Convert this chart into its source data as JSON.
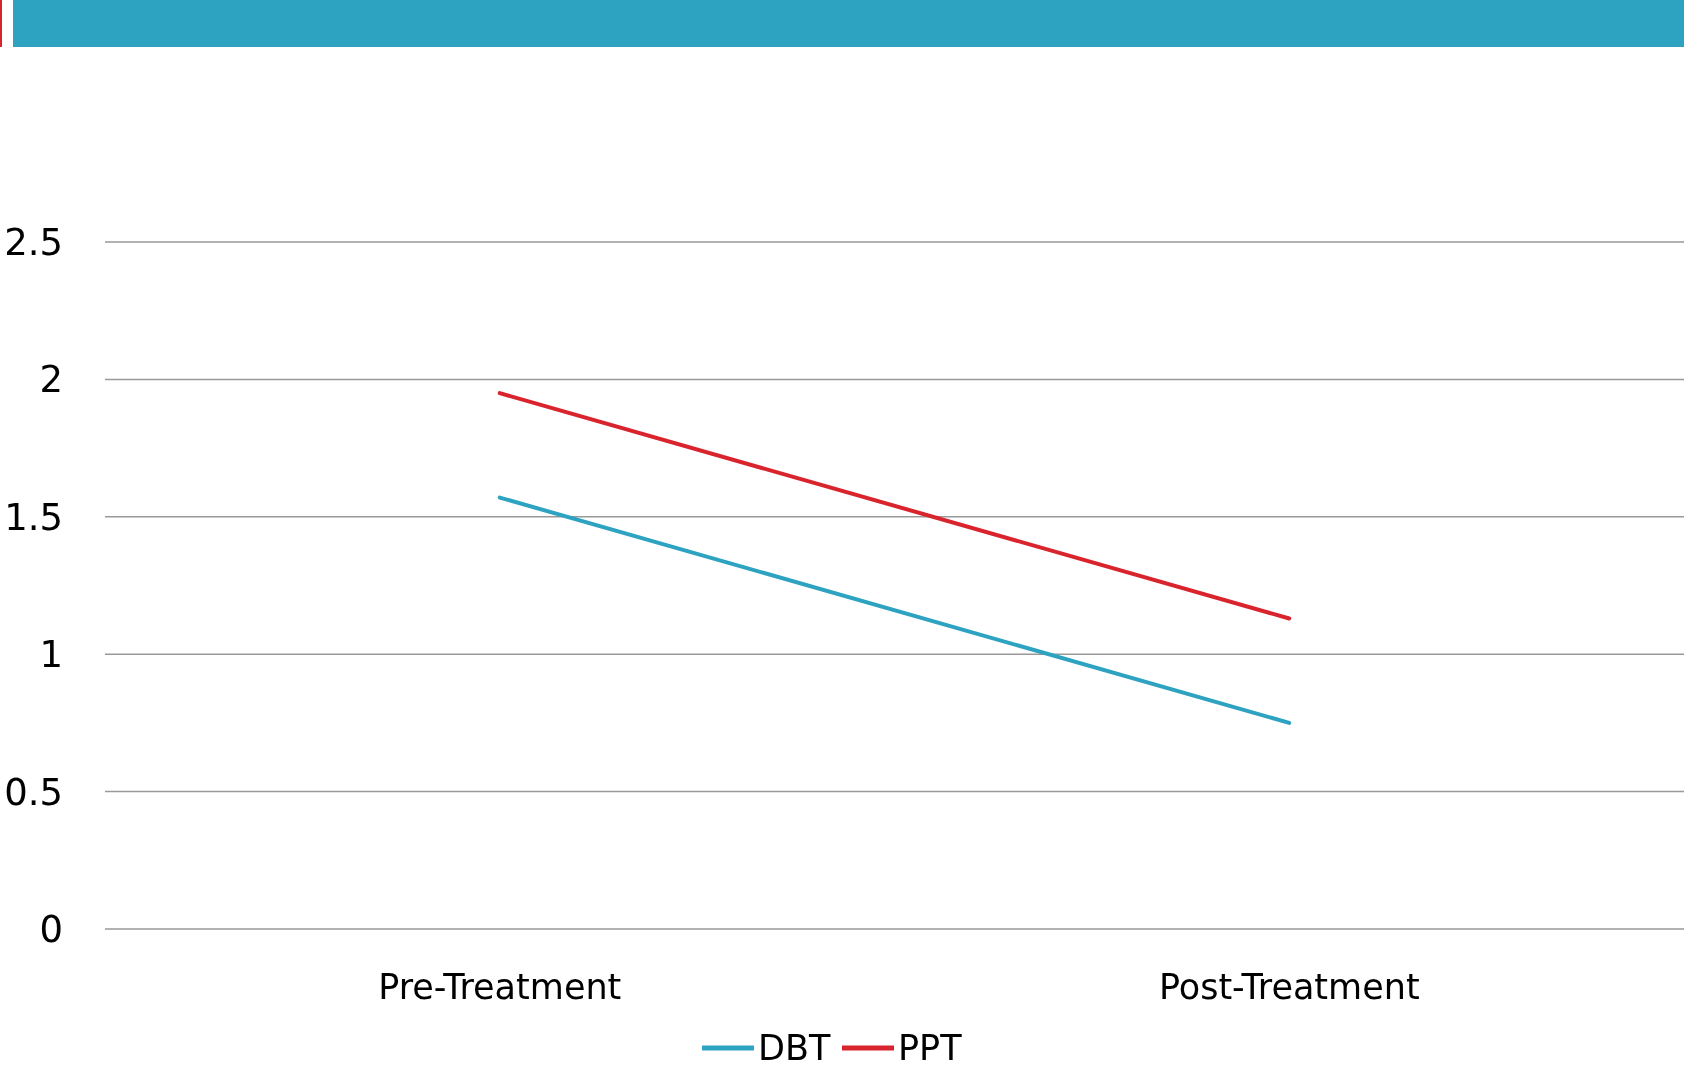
{
  "chart_data": {
    "type": "line",
    "categories": [
      "Pre-Treatment",
      "Post-Treatment"
    ],
    "series": [
      {
        "name": "DBT",
        "color": "#2ea3c1",
        "values": [
          1.57,
          0.75
        ]
      },
      {
        "name": "PPT",
        "color": "#d9232d",
        "values": [
          1.95,
          1.13
        ]
      }
    ],
    "ylim": [
      0,
      2.5
    ],
    "yticks": [
      0,
      0.5,
      1,
      1.5,
      2,
      2.5
    ],
    "grid": "y",
    "legend": "bottom",
    "marker": "none",
    "line_style": "solid"
  }
}
